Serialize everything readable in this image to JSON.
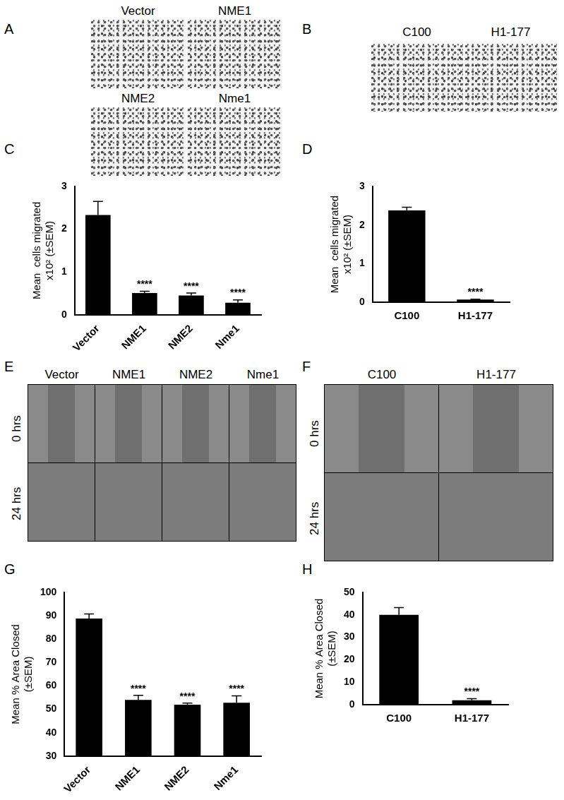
{
  "panels": {
    "A": {
      "label": "A",
      "images": [
        "Vector",
        "NME1",
        "NME2",
        "Nme1"
      ]
    },
    "B": {
      "label": "B",
      "images": [
        "C100",
        "H1-177"
      ]
    },
    "E": {
      "label": "E",
      "columns": [
        "Vector",
        "NME1",
        "NME2",
        "Nme1"
      ],
      "rows": [
        "0 hrs",
        "24 hrs"
      ]
    },
    "F": {
      "label": "F",
      "columns": [
        "C100",
        "H1-177"
      ],
      "rows": [
        "0 hrs",
        "24 hrs"
      ]
    }
  },
  "chart_data": [
    {
      "panel": "C",
      "type": "bar",
      "categories": [
        "Vector",
        "NME1",
        "NME2",
        "Nme1"
      ],
      "values": [
        2.33,
        0.51,
        0.45,
        0.28
      ],
      "errors": [
        0.32,
        0.04,
        0.06,
        0.07
      ],
      "significance": [
        null,
        "****",
        "****",
        "****"
      ],
      "color": "#000000",
      "y_label": [
        "Mean  cells migrated",
        "x10² (±SEM)"
      ],
      "ylim": [
        0,
        3
      ],
      "yticks": [
        0,
        1,
        2,
        3
      ],
      "grid": false
    },
    {
      "panel": "D",
      "type": "bar",
      "categories": [
        "C100",
        "H1-177"
      ],
      "values": [
        2.38,
        0.07
      ],
      "errors": [
        0.08,
        0.01
      ],
      "significance": [
        null,
        "****"
      ],
      "color": "#000000",
      "y_label": [
        "Mean  cells migrated",
        "x10² (±SEM)"
      ],
      "ylim": [
        0,
        3
      ],
      "yticks": [
        0,
        1,
        2,
        3
      ],
      "grid": false
    },
    {
      "panel": "G",
      "type": "bar",
      "categories": [
        "Vector",
        "NME1",
        "NME2",
        "Nme1"
      ],
      "values": [
        88.8,
        54,
        52,
        52.8
      ],
      "errors": [
        2,
        2,
        0.7,
        3
      ],
      "significance": [
        null,
        "****",
        "****",
        "****"
      ],
      "color": "#000000",
      "y_label": [
        "Mean % Area Closed",
        "(±SEM)"
      ],
      "ylim": [
        30,
        100
      ],
      "yticks": [
        30,
        40,
        50,
        60,
        70,
        80,
        90,
        100
      ],
      "grid": false
    },
    {
      "panel": "H",
      "type": "bar",
      "categories": [
        "C100",
        "H1-177"
      ],
      "values": [
        40,
        2
      ],
      "errors": [
        3.2,
        0.7
      ],
      "significance": [
        null,
        "****"
      ],
      "color": "#000000",
      "y_label": [
        "Mean % Area Closed",
        "(±SEM)"
      ],
      "ylim": [
        0,
        50
      ],
      "yticks": [
        0,
        10,
        20,
        30,
        40,
        50
      ],
      "grid": false
    }
  ]
}
